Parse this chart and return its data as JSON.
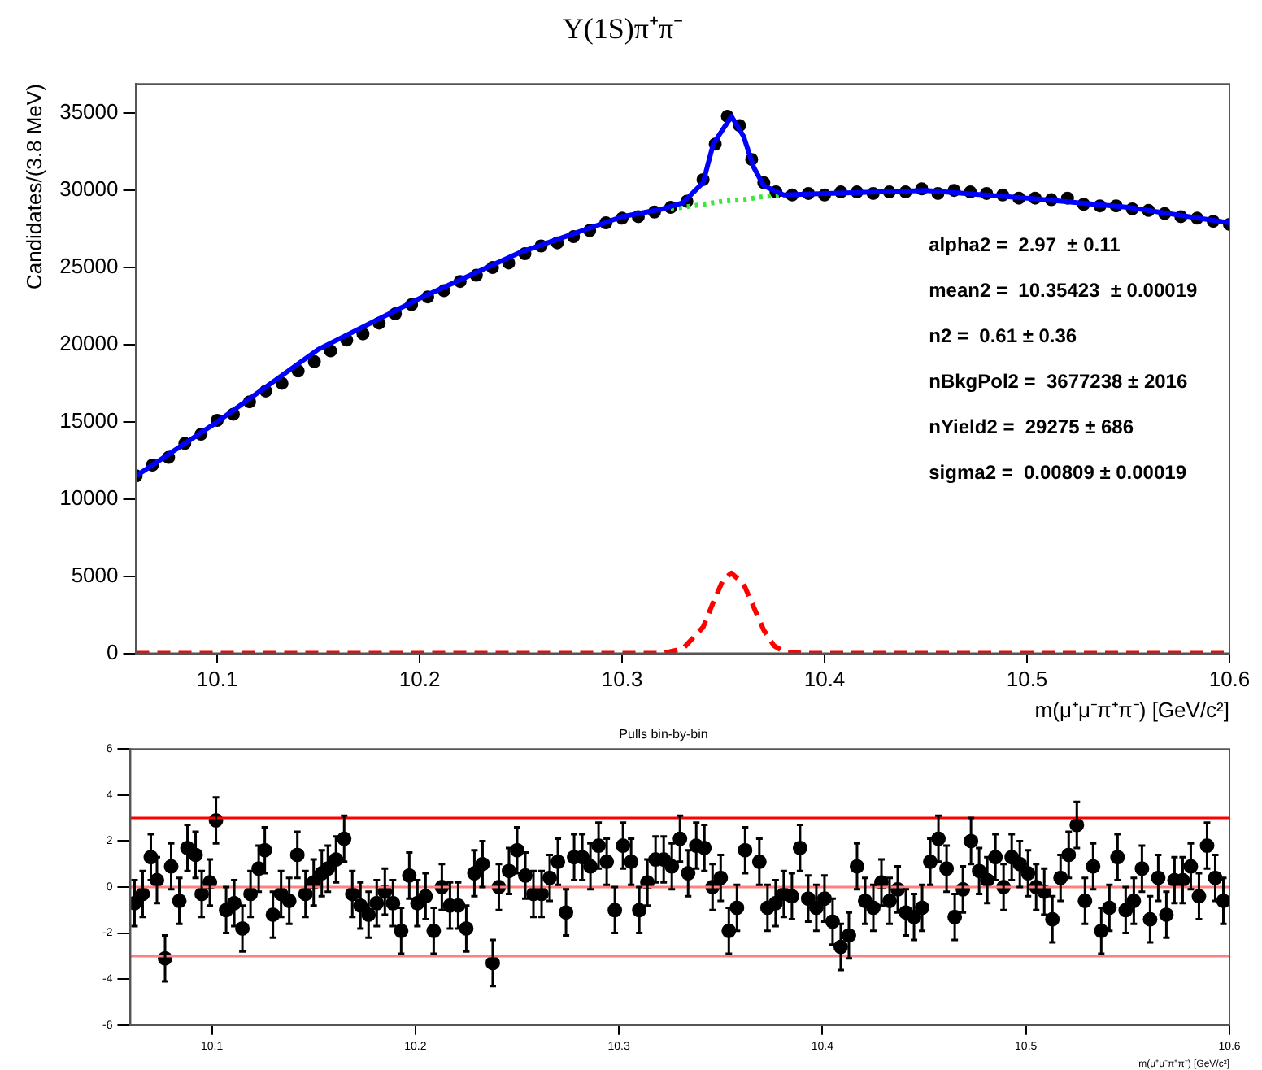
{
  "chart_data": [
    {
      "type": "scatter",
      "title": "Υ(1S)π⁺π⁻",
      "xlabel": "m(μ⁺μ⁻π⁺π⁻) [GeV/c²]",
      "ylabel": "Candidates/(3.8 MeV)",
      "xlim": [
        10.06,
        10.6
      ],
      "xticks": [
        10.1,
        10.2,
        10.3,
        10.4,
        10.5,
        10.6
      ],
      "ylim": [
        0,
        36900
      ],
      "yticks": [
        0,
        5000,
        10000,
        15000,
        20000,
        25000,
        30000,
        35000
      ],
      "grid": false,
      "legend": false,
      "annotations": [
        "alpha2 =  2.97  ± 0.11",
        "mean2 =  10.35423  ± 0.00019",
        "n2 =  0.61 ± 0.36",
        "nBkgPol2 =  3677238 ± 2016",
        "nYield2 =  29275 ± 686",
        "sigma2 =  0.00809 ± 0.00019"
      ],
      "series": [
        {
          "color": "#000000",
          "marker": "circle",
          "x": [
            10.06,
            10.068,
            10.076,
            10.084,
            10.092,
            10.1,
            10.108,
            10.116,
            10.124,
            10.132,
            10.14,
            10.148,
            10.156,
            10.164,
            10.172,
            10.18,
            10.188,
            10.196,
            10.204,
            10.212,
            10.22,
            10.228,
            10.236,
            10.244,
            10.252,
            10.26,
            10.268,
            10.276,
            10.284,
            10.292,
            10.3,
            10.308,
            10.316,
            10.324,
            10.332,
            10.34,
            10.346,
            10.352,
            10.358,
            10.364,
            10.37,
            10.376,
            10.384,
            10.392,
            10.4,
            10.408,
            10.416,
            10.424,
            10.432,
            10.44,
            10.448,
            10.456,
            10.464,
            10.472,
            10.48,
            10.488,
            10.496,
            10.504,
            10.512,
            10.52,
            10.528,
            10.536,
            10.544,
            10.552,
            10.56,
            10.568,
            10.576,
            10.584,
            10.592,
            10.6
          ],
          "values": [
            11500,
            12200,
            12700,
            13600,
            14200,
            15100,
            15500,
            16300,
            17000,
            17500,
            18300,
            18900,
            19600,
            20300,
            20700,
            21400,
            22000,
            22600,
            23100,
            23500,
            24100,
            24500,
            25000,
            25300,
            25900,
            26400,
            26600,
            27000,
            27400,
            27900,
            28200,
            28300,
            28600,
            28900,
            29300,
            30700,
            33000,
            34800,
            34200,
            32000,
            30500,
            29900,
            29700,
            29800,
            29700,
            29900,
            29900,
            29800,
            29900,
            29900,
            30100,
            29800,
            30000,
            29900,
            29800,
            29700,
            29500,
            29500,
            29400,
            29500,
            29100,
            29000,
            29000,
            28800,
            28700,
            28500,
            28300,
            28200,
            28000,
            27800
          ]
        },
        {
          "type": "line",
          "color": "#39e639",
          "marker": "none",
          "line_style": "dotted",
          "x": [
            10.32,
            10.33,
            10.34,
            10.35,
            10.36,
            10.37,
            10.38
          ],
          "values": [
            28800,
            28900,
            29100,
            29300,
            29400,
            29600,
            29700
          ]
        },
        {
          "type": "line",
          "color": "#ff0000",
          "marker": "none",
          "line_style": "dashed",
          "x": [
            10.06,
            10.32,
            10.33,
            10.34,
            10.345,
            10.35,
            10.354,
            10.36,
            10.365,
            10.37,
            10.375,
            10.38,
            10.39,
            10.6
          ],
          "values": [
            0,
            0,
            300,
            1700,
            3300,
            4800,
            5200,
            4500,
            3000,
            1500,
            500,
            100,
            0,
            0
          ]
        },
        {
          "type": "line",
          "color": "#0000ff",
          "marker": "none",
          "line_style": "solid",
          "x": [
            10.06,
            10.1,
            10.15,
            10.2,
            10.25,
            10.3,
            10.32,
            10.33,
            10.34,
            10.345,
            10.354,
            10.36,
            10.365,
            10.37,
            10.38,
            10.4,
            10.45,
            10.5,
            10.55,
            10.6
          ],
          "values": [
            11500,
            15000,
            19700,
            23000,
            26000,
            28300,
            28800,
            29200,
            30500,
            33000,
            34800,
            33500,
            31500,
            30300,
            29700,
            29800,
            30000,
            29500,
            28900,
            27900
          ]
        }
      ]
    },
    {
      "type": "scatter",
      "title": "Pulls bin-by-bin",
      "xlabel": "m(μ⁺μ⁻π⁺π⁻) [GeV/c²]",
      "xlim": [
        10.06,
        10.6
      ],
      "xticks": [
        10.1,
        10.2,
        10.3,
        10.4,
        10.5,
        10.6
      ],
      "ylim": [
        -6,
        6
      ],
      "yticks": [
        -6,
        -4,
        -2,
        0,
        2,
        4,
        6
      ],
      "grid": false,
      "legend": false,
      "ref_lines": [
        {
          "axis": "y",
          "value": 3,
          "color": "#ff0000"
        },
        {
          "axis": "y",
          "value": 0,
          "color": "#ff8080"
        },
        {
          "axis": "y",
          "value": -3,
          "color": "#ff8080"
        }
      ],
      "series": [
        {
          "color": "#000000",
          "marker": "circle",
          "x": [
            10.062,
            10.066,
            10.07,
            10.073,
            10.077,
            10.08,
            10.084,
            10.088,
            10.092,
            10.095,
            10.099,
            10.102,
            10.107,
            10.111,
            10.115,
            10.119,
            10.123,
            10.126,
            10.13,
            10.134,
            10.138,
            10.142,
            10.146,
            10.15,
            10.154,
            10.157,
            10.161,
            10.165,
            10.169,
            10.173,
            10.177,
            10.181,
            10.185,
            10.189,
            10.193,
            10.197,
            10.201,
            10.205,
            10.209,
            10.213,
            10.217,
            10.221,
            10.225,
            10.229,
            10.233,
            10.238,
            10.241,
            10.246,
            10.25,
            10.254,
            10.258,
            10.262,
            10.266,
            10.27,
            10.274,
            10.278,
            10.282,
            10.286,
            10.29,
            10.294,
            10.298,
            10.302,
            10.306,
            10.31,
            10.314,
            10.318,
            10.322,
            10.326,
            10.33,
            10.334,
            10.338,
            10.342,
            10.346,
            10.35,
            10.354,
            10.358,
            10.362,
            10.369,
            10.373,
            10.377,
            10.381,
            10.385,
            10.389,
            10.393,
            10.397,
            10.401,
            10.405,
            10.409,
            10.413,
            10.417,
            10.421,
            10.425,
            10.429,
            10.433,
            10.437,
            10.441,
            10.445,
            10.449,
            10.453,
            10.457,
            10.461,
            10.465,
            10.469,
            10.473,
            10.477,
            10.481,
            10.485,
            10.489,
            10.493,
            10.497,
            10.501,
            10.505,
            10.509,
            10.513,
            10.517,
            10.521,
            10.525,
            10.529,
            10.533,
            10.537,
            10.541,
            10.545,
            10.549,
            10.553,
            10.557,
            10.561,
            10.565,
            10.569,
            10.573,
            10.577,
            10.581,
            10.585,
            10.589,
            10.593,
            10.597
          ],
          "values": [
            -0.7,
            -0.3,
            1.3,
            0.3,
            -3.1,
            0.9,
            -0.6,
            1.7,
            1.4,
            -0.3,
            0.2,
            2.9,
            -1,
            -0.7,
            -1.8,
            -0.3,
            0.8,
            1.6,
            -1.2,
            -0.3,
            -0.6,
            1.4,
            -0.3,
            0.2,
            0.6,
            0.8,
            1.2,
            2.1,
            -0.3,
            -0.8,
            -1.2,
            -0.7,
            -0.2,
            -0.7,
            -1.9,
            0.5,
            -0.7,
            -0.4,
            -1.9,
            0,
            -0.8,
            -0.8,
            -1.8,
            0.6,
            1,
            -3.3,
            0,
            0.7,
            1.6,
            0.5,
            -0.3,
            -0.3,
            0.4,
            1.1,
            -1.1,
            1.3,
            1.3,
            0.9,
            1.8,
            1.1,
            -1,
            1.8,
            1.1,
            -1,
            0.2,
            1.2,
            1.2,
            0.9,
            2.1,
            0.6,
            1.8,
            1.7,
            0,
            0.4,
            -1.9,
            -0.9,
            1.6,
            1.1,
            -0.9,
            -0.7,
            -0.3,
            -0.4,
            1.7,
            -0.5,
            -0.9,
            -0.5,
            -1.5,
            -2.6,
            -2.1,
            0.9,
            -0.6,
            -0.9,
            0.2,
            -0.6,
            -0.1,
            -1.1,
            -1.3,
            -0.9,
            1.1,
            2.1,
            0.8,
            -1.3,
            -0.1,
            2,
            0.7,
            0.3,
            1.3,
            0,
            1.3,
            1,
            0.6,
            0,
            -0.2,
            -1.4,
            0.4,
            1.4,
            2.7,
            -0.6,
            0.9,
            -1.9,
            -0.9,
            1.3,
            -1,
            -0.6,
            0.8,
            -1.4,
            0.4,
            -1.2,
            0.3,
            0.3,
            0.9,
            -0.4,
            1.8,
            0.4,
            -0.6
          ],
          "errors": [
            1,
            1,
            1,
            1,
            1,
            1,
            1,
            1,
            1,
            1,
            1,
            1,
            1,
            1,
            1,
            1,
            1,
            1,
            1,
            1,
            1,
            1,
            1,
            1,
            1,
            1,
            1,
            1,
            1,
            1,
            1,
            1,
            1,
            1,
            1,
            1,
            1,
            1,
            1,
            1,
            1,
            1,
            1,
            1,
            1,
            1,
            1,
            1,
            1,
            1,
            1,
            1,
            1,
            1,
            1,
            1,
            1,
            1,
            1,
            1,
            1,
            1,
            1,
            1,
            1,
            1,
            1,
            1,
            1,
            1,
            1,
            1,
            1,
            1,
            1,
            1,
            1,
            1,
            1,
            1,
            1,
            1,
            1,
            1,
            1,
            1,
            1,
            1,
            1,
            1,
            1,
            1,
            1,
            1,
            1,
            1,
            1,
            1,
            1,
            1,
            1,
            1,
            1,
            1,
            1,
            1,
            1,
            1,
            1,
            1,
            1,
            1,
            1,
            1,
            1,
            1,
            1,
            1,
            1,
            1,
            1,
            1,
            1,
            1,
            1,
            1,
            1,
            1,
            1,
            1,
            1,
            1,
            1,
            1,
            1
          ]
        }
      ]
    }
  ]
}
